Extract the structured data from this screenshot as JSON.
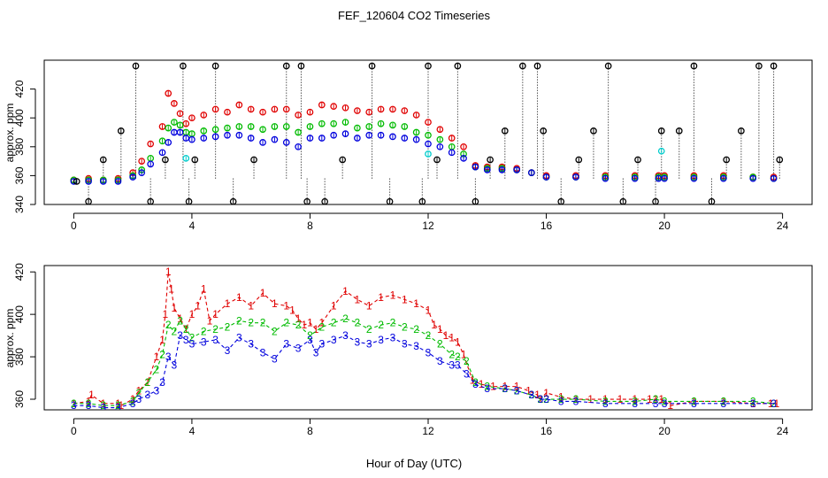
{
  "figure": {
    "title": "FEF_120604  CO2 Timeseries",
    "xlabel": "Hour of Day (UTC)"
  },
  "chart_data": [
    {
      "type": "scatter",
      "panel": "top",
      "ylabel": "approx. ppm",
      "xlim": [
        0,
        24
      ],
      "ylim": [
        340,
        440
      ],
      "x_ticks": [
        0,
        4,
        8,
        12,
        16,
        20,
        24
      ],
      "y_ticks": [
        340,
        360,
        380,
        400,
        420
      ],
      "colors": {
        "s1": "#e00000",
        "s2": "#00bb00",
        "s3": "#0000dd",
        "flag": "#000000",
        "cyan": "#00cccc"
      },
      "series": [
        {
          "color": "#e00000",
          "x": [
            0.0,
            0.5,
            1.0,
            1.5,
            2.0,
            2.3,
            2.6,
            3.0,
            3.2,
            3.4,
            3.6,
            3.8,
            4.0,
            4.4,
            4.8,
            5.2,
            5.6,
            6.0,
            6.4,
            6.8,
            7.2,
            7.6,
            8.0,
            8.4,
            8.8,
            9.2,
            9.6,
            10.0,
            10.4,
            10.8,
            11.2,
            11.6,
            12.0,
            12.4,
            12.8,
            13.2,
            13.6,
            14.0,
            14.5,
            15.0,
            15.5,
            16.0,
            17.0,
            18.0,
            19.0,
            19.8,
            20.0,
            21.0,
            22.0,
            23.0,
            23.7
          ],
          "y": [
            357,
            358,
            357,
            358,
            362,
            370,
            382,
            394,
            417,
            410,
            403,
            396,
            400,
            402,
            406,
            404,
            409,
            406,
            404,
            406,
            406,
            402,
            404,
            409,
            408,
            407,
            405,
            404,
            406,
            406,
            405,
            402,
            397,
            392,
            386,
            380,
            367,
            366,
            366,
            365,
            362,
            360,
            360,
            360,
            360,
            360,
            360,
            360,
            360,
            359,
            359
          ]
        },
        {
          "color": "#00bb00",
          "x": [
            0.0,
            0.5,
            1.0,
            1.5,
            2.0,
            2.3,
            2.6,
            3.0,
            3.2,
            3.4,
            3.6,
            3.8,
            4.0,
            4.4,
            4.8,
            5.2,
            5.6,
            6.0,
            6.4,
            6.8,
            7.2,
            7.6,
            8.0,
            8.4,
            8.8,
            9.2,
            9.6,
            10.0,
            10.4,
            10.8,
            11.2,
            11.6,
            12.0,
            12.4,
            12.8,
            13.2,
            13.6,
            14.0,
            14.5,
            15.0,
            15.5,
            16.0,
            17.0,
            18.0,
            19.0,
            19.8,
            20.0,
            21.0,
            22.0,
            23.0,
            23.7
          ],
          "y": [
            357,
            357,
            357,
            357,
            360,
            364,
            372,
            384,
            393,
            397,
            395,
            390,
            389,
            391,
            392,
            393,
            394,
            394,
            392,
            394,
            394,
            390,
            394,
            396,
            396,
            397,
            393,
            394,
            396,
            395,
            394,
            390,
            388,
            385,
            380,
            375,
            366,
            365,
            365,
            364,
            362,
            359,
            359,
            359,
            359,
            359,
            359,
            359,
            359,
            359,
            358
          ]
        },
        {
          "color": "#0000dd",
          "x": [
            0.0,
            0.5,
            1.0,
            1.5,
            2.0,
            2.3,
            2.6,
            3.0,
            3.2,
            3.4,
            3.6,
            3.8,
            4.0,
            4.4,
            4.8,
            5.2,
            5.6,
            6.0,
            6.4,
            6.8,
            7.2,
            7.6,
            8.0,
            8.4,
            8.8,
            9.2,
            9.6,
            10.0,
            10.4,
            10.8,
            11.2,
            11.6,
            12.0,
            12.4,
            12.8,
            13.2,
            13.6,
            14.0,
            14.5,
            15.0,
            15.5,
            16.0,
            17.0,
            18.0,
            19.0,
            19.8,
            20.0,
            21.0,
            22.0,
            23.0,
            23.7
          ],
          "y": [
            356,
            356,
            356,
            356,
            359,
            362,
            368,
            376,
            383,
            390,
            390,
            386,
            385,
            386,
            387,
            388,
            388,
            386,
            383,
            385,
            383,
            380,
            386,
            386,
            388,
            389,
            386,
            388,
            388,
            387,
            386,
            385,
            382,
            380,
            376,
            372,
            366,
            364,
            364,
            364,
            362,
            359,
            359,
            358,
            358,
            358,
            358,
            358,
            358,
            358,
            358
          ]
        },
        {
          "color": "#00cccc",
          "x": [
            3.8,
            12.0,
            19.9
          ],
          "y": [
            372,
            375,
            377
          ]
        }
      ],
      "flags": {
        "color": "#000000",
        "x": [
          0.1,
          0.5,
          1.0,
          1.6,
          2.1,
          2.6,
          3.1,
          3.7,
          3.9,
          4.1,
          4.8,
          5.4,
          6.1,
          7.2,
          7.7,
          7.9,
          8.5,
          9.1,
          10.1,
          10.7,
          11.8,
          12.0,
          12.3,
          13.0,
          13.6,
          14.1,
          14.6,
          15.2,
          15.7,
          15.9,
          16.5,
          17.1,
          17.6,
          18.1,
          18.6,
          19.1,
          19.7,
          19.9,
          20.5,
          21.0,
          21.6,
          22.1,
          22.6,
          23.2,
          23.7,
          23.9
        ],
        "y": [
          356,
          342,
          371,
          391,
          436,
          342,
          371,
          436,
          342,
          371,
          436,
          342,
          371,
          436,
          436,
          342,
          342,
          371,
          436,
          342,
          342,
          436,
          371,
          436,
          342,
          371,
          391,
          436,
          436,
          391,
          342,
          371,
          391,
          436,
          342,
          371,
          342,
          391,
          391,
          436,
          342,
          371,
          391,
          436,
          436,
          371
        ]
      }
    },
    {
      "type": "line",
      "panel": "bottom",
      "ylabel": "approx. ppm",
      "xlim": [
        0,
        24
      ],
      "ylim": [
        355,
        423
      ],
      "x_ticks": [
        0,
        4,
        8,
        12,
        16,
        20,
        24
      ],
      "y_ticks": [
        360,
        380,
        400,
        420
      ],
      "series": [
        {
          "marker": "1",
          "color": "#e00000",
          "x": [
            0.0,
            0.5,
            0.6,
            1.0,
            1.5,
            1.6,
            2.0,
            2.2,
            2.5,
            2.8,
            3.0,
            3.1,
            3.2,
            3.3,
            3.4,
            3.6,
            3.8,
            4.0,
            4.2,
            4.4,
            4.6,
            4.8,
            5.2,
            5.6,
            6.0,
            6.4,
            6.8,
            7.2,
            7.4,
            7.6,
            7.8,
            8.0,
            8.2,
            8.4,
            8.8,
            9.2,
            9.6,
            10.0,
            10.4,
            10.8,
            11.2,
            11.6,
            12.0,
            12.2,
            12.4,
            12.6,
            12.8,
            13.0,
            13.2,
            13.5,
            13.8,
            14.2,
            14.6,
            15.0,
            15.4,
            15.7,
            15.8,
            16.0,
            16.5,
            17.0,
            17.5,
            18.0,
            18.5,
            19.0,
            19.5,
            19.7,
            19.9,
            20.2,
            21.0,
            22.0,
            23.0,
            23.6,
            23.8
          ],
          "y": [
            358,
            359,
            362,
            358,
            358,
            357,
            360,
            364,
            368,
            380,
            388,
            400,
            420,
            412,
            403,
            398,
            393,
            400,
            404,
            412,
            397,
            400,
            405,
            408,
            404,
            410,
            405,
            404,
            402,
            398,
            395,
            396,
            393,
            396,
            404,
            411,
            407,
            404,
            408,
            409,
            407,
            405,
            402,
            395,
            393,
            390,
            389,
            387,
            381,
            369,
            367,
            366,
            366,
            366,
            364,
            362,
            360,
            363,
            361,
            360,
            360,
            360,
            360,
            360,
            360,
            360,
            360,
            357,
            359,
            359,
            358,
            358,
            358
          ]
        },
        {
          "marker": "2",
          "color": "#00bb00",
          "x": [
            0.0,
            0.5,
            1.0,
            1.5,
            2.0,
            2.2,
            2.5,
            2.8,
            3.0,
            3.2,
            3.4,
            3.6,
            3.8,
            4.0,
            4.4,
            4.8,
            5.2,
            5.6,
            6.0,
            6.4,
            6.8,
            7.2,
            7.6,
            8.0,
            8.4,
            8.8,
            9.2,
            9.6,
            10.0,
            10.4,
            10.8,
            11.2,
            11.6,
            12.0,
            12.4,
            12.8,
            13.0,
            13.3,
            13.6,
            14.0,
            14.6,
            15.0,
            15.5,
            15.8,
            16.0,
            16.5,
            17.0,
            18.0,
            19.0,
            19.7,
            20.0,
            21.0,
            22.0,
            23.0,
            23.7
          ],
          "y": [
            358,
            358,
            357,
            357,
            359,
            363,
            368,
            374,
            381,
            395,
            392,
            397,
            393,
            389,
            392,
            393,
            394,
            397,
            396,
            396,
            392,
            396,
            395,
            390,
            394,
            396,
            398,
            396,
            393,
            395,
            396,
            394,
            393,
            390,
            386,
            381,
            380,
            378,
            368,
            366,
            365,
            364,
            362,
            360,
            360,
            360,
            360,
            359,
            359,
            360,
            359,
            359,
            359,
            359,
            358
          ]
        },
        {
          "marker": "3",
          "color": "#0000dd",
          "x": [
            0.0,
            0.5,
            1.0,
            1.5,
            2.0,
            2.2,
            2.5,
            2.8,
            3.0,
            3.2,
            3.4,
            3.6,
            3.8,
            4.0,
            4.4,
            4.8,
            5.2,
            5.6,
            6.0,
            6.4,
            6.8,
            7.2,
            7.6,
            8.0,
            8.2,
            8.4,
            8.8,
            9.2,
            9.6,
            10.0,
            10.4,
            10.8,
            11.2,
            11.6,
            12.0,
            12.4,
            12.8,
            13.0,
            13.3,
            13.6,
            14.0,
            14.6,
            15.0,
            15.5,
            15.8,
            16.0,
            16.5,
            17.0,
            18.0,
            19.0,
            19.7,
            20.0,
            21.0,
            22.0,
            23.0,
            23.7
          ],
          "y": [
            357,
            357,
            356,
            356,
            358,
            360,
            362,
            364,
            368,
            380,
            376,
            390,
            388,
            386,
            387,
            388,
            383,
            389,
            386,
            382,
            379,
            386,
            384,
            388,
            382,
            386,
            388,
            390,
            387,
            386,
            388,
            389,
            386,
            385,
            382,
            378,
            376,
            376,
            372,
            367,
            365,
            365,
            364,
            362,
            360,
            360,
            359,
            359,
            358,
            358,
            358,
            358,
            358,
            358,
            358,
            358
          ]
        }
      ]
    }
  ]
}
